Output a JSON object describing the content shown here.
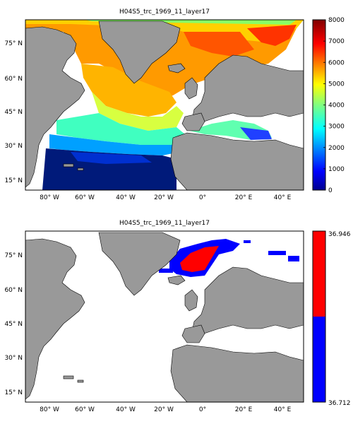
{
  "panels": [
    {
      "title": "H04S5_trc_1969_11_layer17",
      "colorbar": {
        "type": "continuous",
        "min": 0,
        "max": 8000,
        "ticks": [
          "0",
          "1000",
          "2000",
          "3000",
          "4000",
          "5000",
          "6000",
          "7000",
          "8000"
        ],
        "colormap": "jet"
      }
    },
    {
      "title": "H04S5_trc_1969_11_layer17",
      "colorbar": {
        "type": "binary",
        "top_label": "36.946",
        "bottom_label": "36.712",
        "colors": [
          "#ff0000",
          "#0000ff"
        ]
      }
    }
  ],
  "axes": {
    "lon_labels": [
      "80° W",
      "60° W",
      "40° W",
      "20° W",
      "0°",
      "20° E",
      "40° E"
    ],
    "lat_labels": [
      "75° N",
      "60° N",
      "45° N",
      "30° N",
      "15° N"
    ]
  },
  "colors": {
    "land": "#999999",
    "land_border": "#000000",
    "ocean_no_data": "#ffffff"
  }
}
